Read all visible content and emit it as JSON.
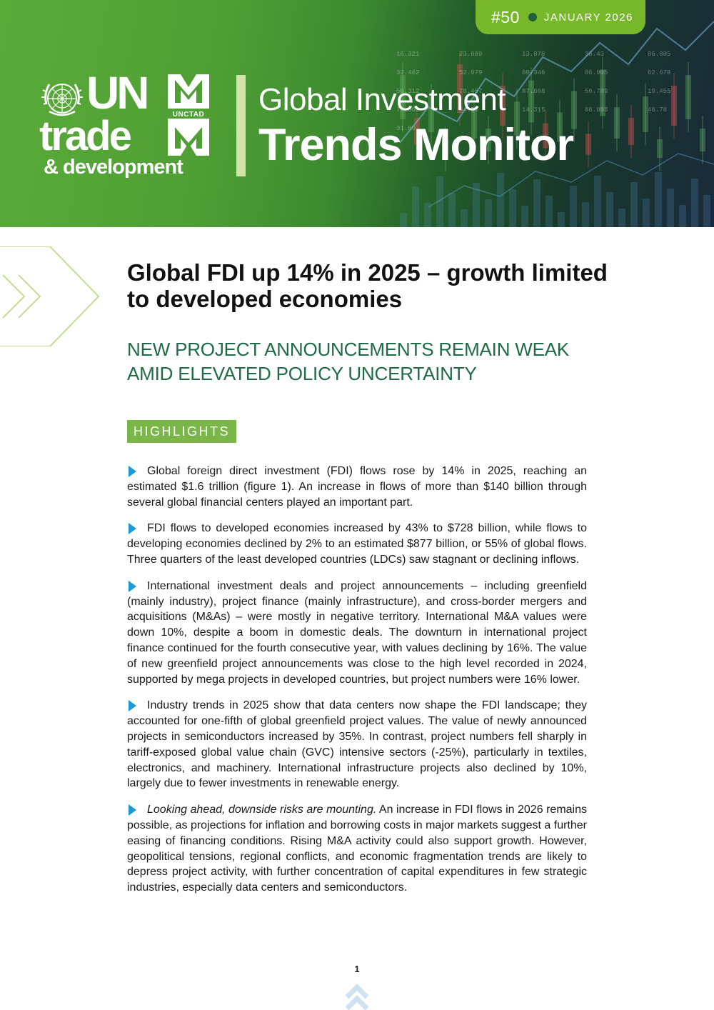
{
  "header": {
    "issue_number": "#50",
    "issue_date": "JANUARY 2026",
    "logo": {
      "line1": "UN",
      "line2": "trade",
      "line3": "& development",
      "mark_label": "UNCTAD"
    },
    "title_line1": "Global Investment",
    "title_line2": "Trends Monitor",
    "background_ticker_numbers": [
      "16.321",
      "23.689",
      "13.878",
      "38.43",
      "86.885",
      "32.462",
      "52.079",
      "80.346",
      "86.005",
      "62.678",
      "56.312",
      "78.457",
      "87.668",
      "56.789",
      "19.455",
      "77.505",
      "44.56",
      "14.315",
      "86.098",
      "46.78",
      "31.80"
    ]
  },
  "colors": {
    "brand_green": "#76b82a",
    "dark_green": "#1e6b45",
    "highlight_green": "#7ab648",
    "bullet_blue": "#1d9ad6"
  },
  "article": {
    "title": "Global FDI up 14% in 2025 – growth limited to developed economies",
    "subtitle": "NEW PROJECT ANNOUNCEMENTS REMAIN WEAK AMID ELEVATED POLICY UNCERTAINTY",
    "highlights_label": "HIGHLIGHTS",
    "bullets": [
      {
        "lead": "",
        "text": "Global foreign direct investment (FDI) flows rose by 14% in 2025, reaching an estimated $1.6 trillion (figure 1). An increase in flows of more than $140 billion through several global financial centers played an important part."
      },
      {
        "lead": "",
        "text": "FDI flows to developed economies increased by 43% to $728 billion, while flows to developing economies declined by 2% to an estimated $877 billion, or 55% of global flows. Three quarters of the least developed countries (LDCs) saw stagnant or declining inflows."
      },
      {
        "lead": "",
        "text": "International investment deals and project announcements – including greenfield (mainly industry), project finance (mainly infrastructure), and cross-border mergers and acquisitions (M&As) – were mostly in negative territory. International M&A values were down 10%, despite a boom in domestic deals. The downturn in international project finance continued for the fourth consecutive year, with values declining by 16%. The value of new greenfield project announcements was close to the high level recorded in 2024, supported by mega projects in developed countries, but project numbers were 16% lower."
      },
      {
        "lead": "",
        "text": "Industry trends in 2025 show that data centers now shape the FDI landscape; they accounted for one-fifth of global greenfield project values. The value of newly announced projects in semiconductors increased by 35%. In contrast, project numbers fell sharply in tariff-exposed global value chain (GVC) intensive sectors (-25%), particularly in textiles, electronics, and machinery. International infrastructure projects also declined by 10%, largely due to fewer investments in renewable energy."
      },
      {
        "lead": "Looking ahead, downside risks are mounting.",
        "text": " An increase in FDI flows in 2026 remains possible, as projections for inflation and borrowing costs in major markets suggest a further easing of financing conditions. Rising M&A activity could also support growth. However, geopolitical tensions, regional conflicts, and economic fragmentation trends are likely to depress project activity, with further concentration of capital expenditures in few strategic industries, especially data centers and semiconductors."
      }
    ]
  },
  "footer": {
    "page_number": "1",
    "nav_icon": "double-chevron-up-icon"
  }
}
